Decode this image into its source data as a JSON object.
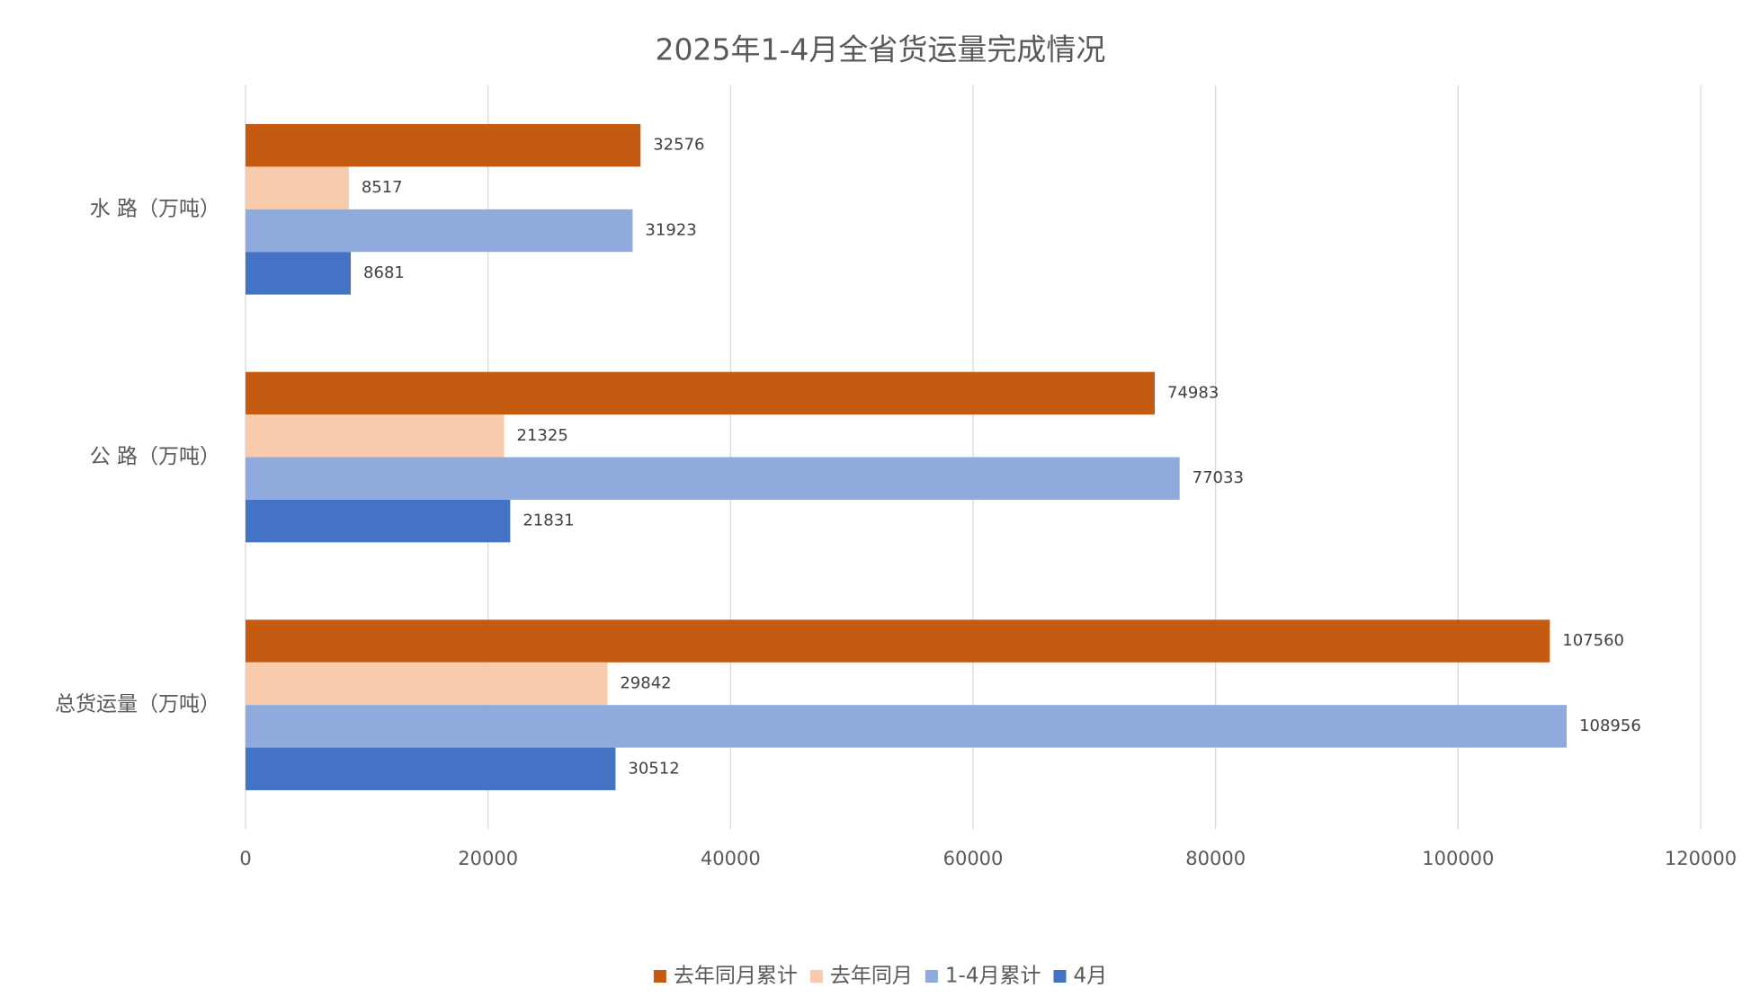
{
  "chart_data": {
    "type": "bar",
    "orientation": "horizontal",
    "title": "2025年1-4月全省货运量完成情况",
    "categories": [
      "水 路（万吨）",
      "公 路（万吨）",
      "总货运量（万吨）"
    ],
    "series": [
      {
        "name": "去年同月累计",
        "color": "#c55a11",
        "values": [
          32576,
          74983,
          107560
        ]
      },
      {
        "name": "去年同月",
        "color": "#f8cbad",
        "values": [
          8517,
          21325,
          29842
        ]
      },
      {
        "name": "1-4月累计",
        "color": "#8faadc",
        "values": [
          31923,
          77033,
          108956
        ]
      },
      {
        "name": "4月",
        "color": "#4472c4",
        "values": [
          8681,
          21831,
          30512
        ]
      }
    ],
    "xlim": [
      0,
      120000
    ],
    "xticks": [
      0,
      20000,
      40000,
      60000,
      80000,
      100000,
      120000
    ],
    "grid": true,
    "legend": "bottom"
  }
}
